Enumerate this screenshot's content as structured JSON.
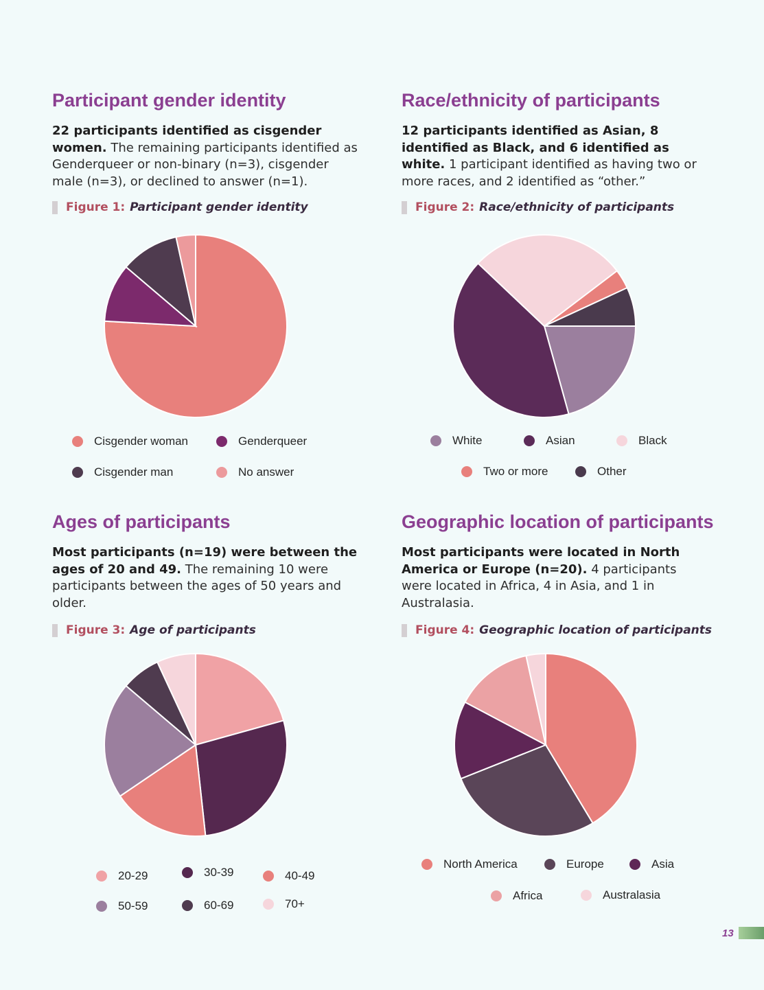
{
  "sections": {
    "gender": {
      "title": "Participant gender identity",
      "body_bold": "22 participants identified as cisgender women.",
      "body_rest": " The remaining participants identified as Genderqueer or non-binary (n=3), cisgender male (n=3), or declined to answer (n=1).",
      "figure_label": "Figure 1:",
      "figure_text": "Participant gender identity"
    },
    "race": {
      "title": "Race/ethnicity of participants",
      "body_bold": "12 participants identified as Asian, 8 identified as Black, and 6 identified as white.",
      "body_rest": " 1 participant identified as having two or more races, and 2 identified as “other.”",
      "figure_label": "Figure 2:",
      "figure_text": "Race/ethnicity of participants"
    },
    "ages": {
      "title": "Ages of participants",
      "body_bold": "Most participants (n=19) were between the ages of 20 and 49.",
      "body_rest": " The remaining 10 were participants between the ages of 50 years and older.",
      "figure_label": "Figure 3:",
      "figure_text": "Age of participants"
    },
    "geo": {
      "title": "Geographic location of participants",
      "body_bold": "Most participants were located in North America or Europe (n=20).",
      "body_rest": " 4 participants were located in Africa, 4 in Asia, and 1 in Australasia.",
      "figure_label": "Figure 4:",
      "figure_text": "Geographic location of participants"
    }
  },
  "page_number": "13",
  "chart_data": [
    {
      "type": "pie",
      "title": "Participant gender identity",
      "categories": [
        "Cisgender woman",
        "Genderqueer",
        "Cisgender man",
        "No answer"
      ],
      "values": [
        22,
        3,
        3,
        1
      ],
      "colors": [
        "#e8807c",
        "#7c2a6c",
        "#4f3b4f",
        "#ec9a9c"
      ],
      "legend_placement": "bottom"
    },
    {
      "type": "pie",
      "title": "Race/ethnicity of participants",
      "categories": [
        "White",
        "Asian",
        "Black",
        "Two or more",
        "Other"
      ],
      "values": [
        6,
        12,
        8,
        1,
        2
      ],
      "colors": [
        "#9b7f9e",
        "#5b2b58",
        "#f6d6dc",
        "#e8807c",
        "#4a3a4d"
      ],
      "legend_placement": "bottom"
    },
    {
      "type": "pie",
      "title": "Age of participants",
      "categories": [
        "20-29",
        "30-39",
        "40-49",
        "50-59",
        "60-69",
        "70+"
      ],
      "values": [
        6,
        8,
        5,
        6,
        2,
        2
      ],
      "colors": [
        "#f0a2a5",
        "#55284f",
        "#e8807c",
        "#9b7f9e",
        "#4f3b4f",
        "#f6d6dc"
      ],
      "legend_placement": "bottom"
    },
    {
      "type": "pie",
      "title": "Geographic location of participants",
      "categories": [
        "North America",
        "Europe",
        "Asia",
        "Africa",
        "Australasia"
      ],
      "values": [
        12,
        8,
        4,
        4,
        1
      ],
      "colors": [
        "#e8807c",
        "#5a4558",
        "#5f2656",
        "#eba2a4",
        "#f6d6dc"
      ],
      "legend_placement": "bottom"
    }
  ]
}
